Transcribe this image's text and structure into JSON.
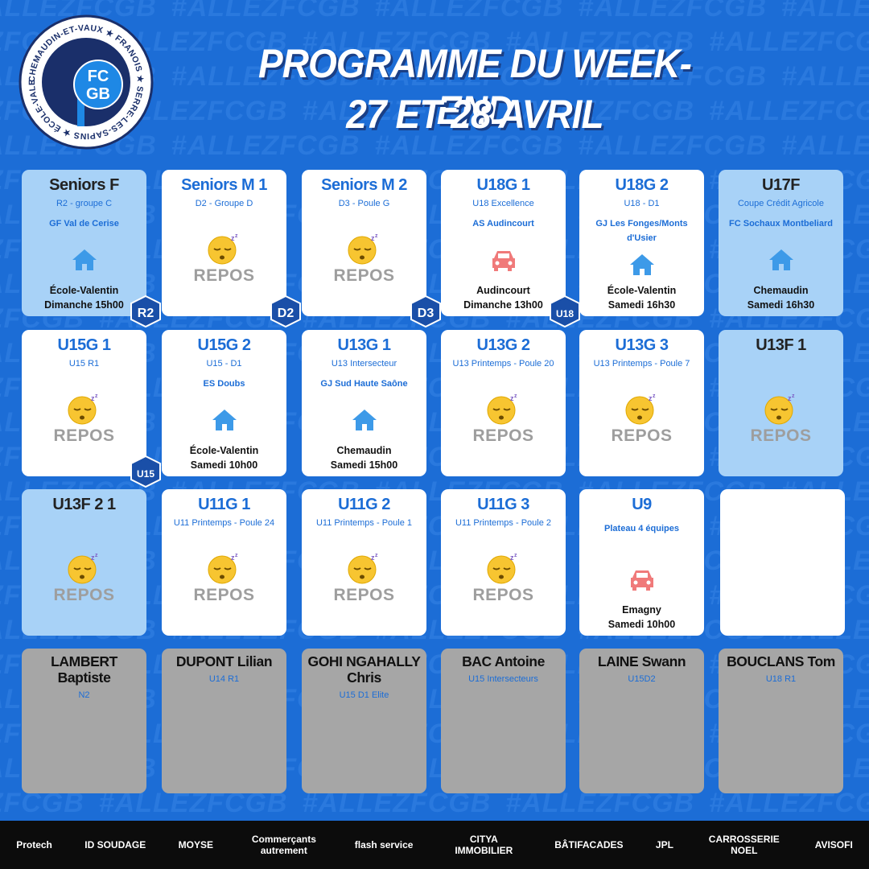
{
  "logo": {
    "ring_text": "CHEMAUDIN-ET-VAUX ★ FRANOIS ★ SERRE-LES-SAPINS ★ ÉCOLE-VALENTIN ★ PIREY ★",
    "initials_top": "FC",
    "initials_bottom": "GB"
  },
  "watermark": "#ALLEZFCGB",
  "header": {
    "title_line1": "PROGRAMME DU WEEK-END",
    "title_line2": "27 ET 28 AVRIL"
  },
  "cards": [
    {
      "team": "Seniors F",
      "competition": "R2 - groupe  C",
      "opponent": "GF Val de Cerise",
      "place": "École-Valentin",
      "when": "Dimanche 15h00",
      "badge": "R2"
    },
    {
      "team": "Seniors M 1",
      "competition": "D2 - Groupe D",
      "status": "REPOS",
      "badge": "D2"
    },
    {
      "team": "Seniors M 2",
      "competition": "D3 - Poule G",
      "status": "REPOS",
      "badge": "D3"
    },
    {
      "team": "U18G 1",
      "competition": "U18 Excellence",
      "opponent": "AS Audincourt",
      "place": "Audincourt",
      "when": "Dimanche 13h00",
      "badge": "U18"
    },
    {
      "team": "U18G 2",
      "competition": "U18 - D1",
      "opponent": "GJ Les Fonges/Monts d'Usier",
      "place": "École-Valentin",
      "when": "Samedi 16h30"
    },
    {
      "team": "U17F",
      "competition": "Coupe Crédit Agricole",
      "opponent": "FC Sochaux Montbeliard",
      "place": "Chemaudin",
      "when": "Samedi 16h30"
    },
    {
      "team": "U15G 1",
      "competition": "U15 R1",
      "status": "REPOS",
      "badge": "U15"
    },
    {
      "team": "U15G 2",
      "competition": "U15 - D1",
      "opponent": "ES Doubs",
      "place": "École-Valentin",
      "when": "Samedi 10h00"
    },
    {
      "team": "U13G 1",
      "competition": "U13 Intersecteur",
      "opponent": "GJ Sud Haute Saône",
      "place": "Chemaudin",
      "when": "Samedi 15h00"
    },
    {
      "team": "U13G 2",
      "competition": "U13 Printemps - Poule 20",
      "status": "REPOS"
    },
    {
      "team": "U13G 3",
      "competition": "U13 Printemps - Poule 7",
      "status": "REPOS"
    },
    {
      "team": "U13F 1",
      "status": "REPOS"
    },
    {
      "team": "U13F 2 1",
      "status": "REPOS"
    },
    {
      "team": "U11G 1",
      "competition": "U11 Printemps - Poule 24",
      "status": "REPOS"
    },
    {
      "team": "U11G 2",
      "competition": "U11 Printemps - Poule 1",
      "status": "REPOS"
    },
    {
      "team": "U11G 3",
      "competition": "U11 Printemps - Poule 2",
      "status": "REPOS"
    },
    {
      "team": "U9",
      "opponent": "Plateau 4 équipes",
      "place": "Emagny",
      "when": "Samedi 10h00"
    }
  ],
  "players": [
    {
      "name": "LAMBERT Baptiste",
      "level": "N2"
    },
    {
      "name": "DUPONT Lilian",
      "level": "U14 R1"
    },
    {
      "name": "GOHI NGAHALLY Chris",
      "level": "U15 D1 Elite"
    },
    {
      "name": "BAC Antoine",
      "level": "U15 Intersecteurs"
    },
    {
      "name": "LAINE Swann",
      "level": "U15D2"
    },
    {
      "name": "BOUCLANS Tom",
      "level": "U18 R1"
    }
  ],
  "sponsors": [
    "Protech",
    "ID SOUDAGE",
    "MOYSE",
    "Commerçants autrement",
    "flash service",
    "CITYA IMMOBILIER",
    "BÂTIFACADES",
    "JPL",
    "CARROSSERIE NOEL",
    "AVISOFI"
  ]
}
